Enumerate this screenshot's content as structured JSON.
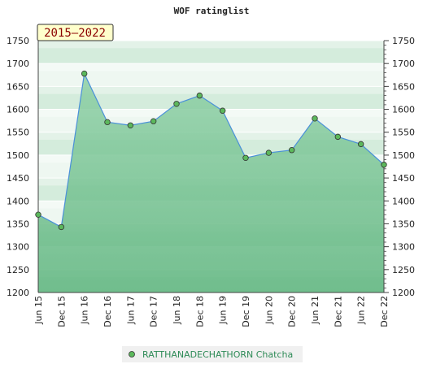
{
  "chart_data": {
    "type": "area",
    "title": "WOF ratinglist",
    "period_label": "2015–2022",
    "x": [
      "Jun 15",
      "Dec 15",
      "Jun 16",
      "Dec 16",
      "Jun 17",
      "Dec 17",
      "Jun 18",
      "Dec 18",
      "Jun 19",
      "Dec 19",
      "Jun 20",
      "Dec 20",
      "Jun 21",
      "Dec 21",
      "Jun 22",
      "Dec 22"
    ],
    "series": [
      {
        "name": "RATTHANADECHATHORN Chatcha",
        "values": [
          1370,
          1343,
          1678,
          1572,
          1565,
          1574,
          1612,
          1630,
          1597,
          1494,
          1505,
          1511,
          1580,
          1540,
          1524,
          1479
        ]
      }
    ],
    "ylim": [
      1200,
      1750
    ],
    "y_ticks": [
      1200,
      1250,
      1300,
      1350,
      1400,
      1450,
      1500,
      1550,
      1600,
      1650,
      1700,
      1750
    ],
    "grid": true,
    "legend_position": "bottom",
    "colors": {
      "line": "#4a90d9",
      "fill": "#6cc08a",
      "marker": "#5cb85c",
      "band_dark": "#d4ecdc",
      "band_light": "#eef7f1"
    }
  }
}
